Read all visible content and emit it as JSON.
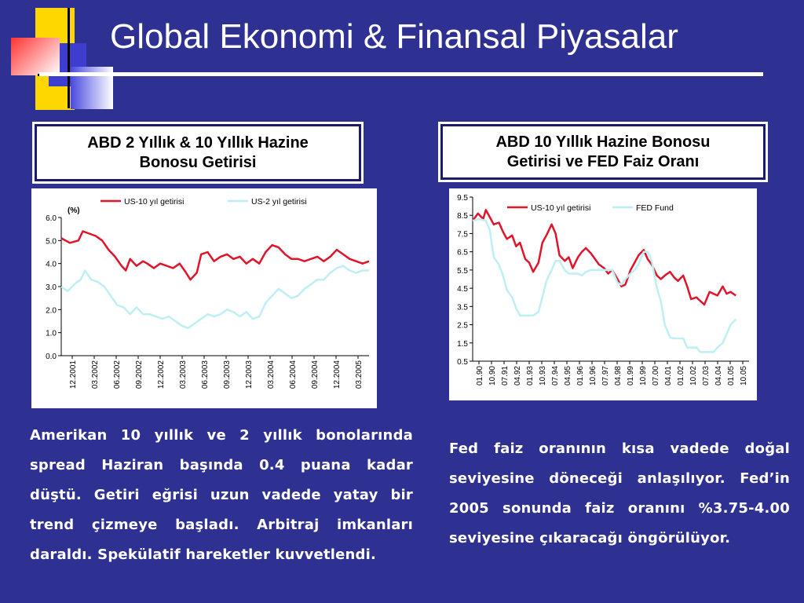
{
  "slide": {
    "title": "Global Ekonomi & Finansal Piyasalar",
    "colors": {
      "background": "#2E3192",
      "accent_yellow": "#FFD700",
      "accent_red": "#FF4040",
      "accent_blue": "#3D3DCF"
    }
  },
  "left_panel": {
    "box_line1": "ABD 2 Yıllık & 10 Yıllık Hazine",
    "box_line2": "Bonosu Getirisi",
    "paragraph": "Amerikan 10 yıllık ve 2 yıllık bonolarında spread Haziran başında 0.4 puana kadar düştü. Getiri eğrisi uzun vadede yatay bir trend çizmeye başladı. Arbitraj imkanları daraldı. Spekülatif hareketler kuvvetlendi."
  },
  "right_panel": {
    "box_line1": "ABD 10 Yıllık Hazine Bonosu",
    "box_line2": "Getirisi ve FED Faiz Oranı",
    "paragraph": "Fed faiz oranının kısa vadede doğal seviyesine döneceği anlaşılıyor. Fed’in 2005 sonunda faiz oranını %3.75-4.00 seviyesine çıkaracağı öngörülüyor."
  },
  "chart_data": [
    {
      "type": "line",
      "unit_label": "(%)",
      "ylim": [
        0,
        6
      ],
      "yticks": [
        "0.0",
        "1.0",
        "2.0",
        "3.0",
        "4.0",
        "5.0",
        "6.0"
      ],
      "xticks": [
        "12.2001",
        "03.2002",
        "06.2002",
        "09.2002",
        "12.2002",
        "03.2003",
        "06.2003",
        "09.2003",
        "12.2003",
        "03.2004",
        "06.2004",
        "09.2004",
        "12.2004",
        "03.2005"
      ],
      "x_index": [
        0,
        1,
        2,
        3,
        4,
        5,
        6,
        7,
        8,
        9,
        10,
        11,
        12,
        13,
        14,
        15,
        16,
        17,
        18,
        19,
        20,
        21,
        22,
        23,
        24,
        25,
        26,
        27,
        28,
        29,
        30,
        31,
        32,
        33,
        34,
        35,
        36,
        37,
        38,
        39,
        40,
        41,
        42,
        43,
        44,
        45,
        46,
        47,
        48,
        49,
        50,
        51,
        52,
        53,
        54,
        55,
        56,
        57,
        58,
        59,
        60,
        61,
        62,
        63,
        64,
        65,
        66,
        67,
        68,
        69,
        70,
        71,
        72,
        73,
        74,
        75,
        76,
        77,
        78,
        79,
        80,
        81,
        82,
        83,
        84,
        85,
        86,
        87,
        88,
        89,
        90,
        91,
        92,
        93,
        94,
        95,
        96,
        97,
        98,
        99,
        100,
        101,
        102,
        103,
        104,
        105,
        106,
        107,
        108,
        109,
        110,
        111,
        112,
        113,
        114,
        115,
        116,
        117,
        118,
        119,
        120,
        121,
        122,
        123,
        124,
        125,
        126,
        127,
        128,
        129,
        130,
        131,
        132,
        133,
        134,
        135,
        136,
        137,
        138,
        139,
        140,
        141,
        142
      ],
      "x_range": [
        0,
        14.3
      ],
      "series": [
        {
          "name": "US-10 yıl getirisi",
          "color": "#E0142A",
          "x": [
            0,
            0.4,
            0.8,
            1.0,
            1.3,
            1.6,
            1.9,
            2.2,
            2.5,
            2.8,
            3.0,
            3.2,
            3.5,
            3.8,
            4.0,
            4.3,
            4.6,
            4.9,
            5.2,
            5.5,
            5.8,
            6.0,
            6.3,
            6.5,
            6.8,
            7.1,
            7.4,
            7.7,
            8.0,
            8.3,
            8.6,
            8.9,
            9.2,
            9.5,
            9.8,
            10.1,
            10.4,
            10.7,
            11.0,
            11.3,
            11.6,
            11.9,
            12.2,
            12.5,
            12.8,
            13.1,
            13.4,
            13.7,
            14.0,
            14.3
          ],
          "y": [
            5.1,
            4.9,
            5.0,
            5.4,
            5.3,
            5.2,
            5.0,
            4.6,
            4.3,
            3.9,
            3.7,
            4.2,
            3.9,
            4.1,
            4.0,
            3.8,
            4.0,
            3.9,
            3.8,
            4.0,
            3.6,
            3.3,
            3.6,
            4.4,
            4.5,
            4.1,
            4.3,
            4.4,
            4.2,
            4.3,
            4.0,
            4.2,
            4.0,
            4.5,
            4.8,
            4.7,
            4.4,
            4.2,
            4.2,
            4.1,
            4.2,
            4.3,
            4.1,
            4.3,
            4.6,
            4.4,
            4.2,
            4.1,
            4.0,
            4.1
          ]
        },
        {
          "name": "US-2 yıl getirisi",
          "color": "#BDEFF3",
          "x": [
            0,
            0.3,
            0.6,
            0.9,
            1.1,
            1.4,
            1.7,
            2.0,
            2.3,
            2.6,
            2.9,
            3.2,
            3.5,
            3.8,
            4.1,
            4.4,
            4.7,
            5.0,
            5.3,
            5.6,
            5.9,
            6.2,
            6.5,
            6.8,
            7.1,
            7.4,
            7.7,
            8.0,
            8.3,
            8.6,
            8.9,
            9.2,
            9.5,
            9.8,
            10.1,
            10.4,
            10.7,
            11.0,
            11.3,
            11.6,
            11.9,
            12.2,
            12.5,
            12.8,
            13.1,
            13.4,
            13.7,
            14.0,
            14.3
          ],
          "y": [
            3.0,
            2.8,
            3.1,
            3.3,
            3.7,
            3.3,
            3.2,
            3.0,
            2.6,
            2.2,
            2.1,
            1.8,
            2.1,
            1.8,
            1.8,
            1.7,
            1.6,
            1.7,
            1.5,
            1.3,
            1.2,
            1.4,
            1.6,
            1.8,
            1.7,
            1.8,
            2.0,
            1.9,
            1.7,
            1.9,
            1.6,
            1.7,
            2.3,
            2.6,
            2.9,
            2.7,
            2.5,
            2.6,
            2.9,
            3.1,
            3.3,
            3.3,
            3.6,
            3.8,
            3.9,
            3.7,
            3.6,
            3.7,
            3.7
          ]
        }
      ]
    },
    {
      "type": "line",
      "ylim": [
        0.5,
        9.5
      ],
      "yticks": [
        "0.5",
        "1.5",
        "2.5",
        "3.5",
        "4.5",
        "5.5",
        "6.5",
        "7.5",
        "8.5",
        "9.5"
      ],
      "xticks": [
        "01.90",
        "10.90",
        "07.91",
        "04.92",
        "01.93",
        "10.93",
        "07.94",
        "04.95",
        "01.96",
        "10.96",
        "07.97",
        "04.98",
        "01.99",
        "10.99",
        "07.00",
        "04.01",
        "01.02",
        "10.02",
        "07.03",
        "04.04",
        "01.05",
        "10.05"
      ],
      "x_range": [
        0,
        21
      ],
      "series": [
        {
          "name": "US-10 yıl getirisi",
          "color": "#E0142A",
          "x": [
            0,
            0.4,
            0.8,
            1.0,
            1.3,
            1.6,
            2.0,
            2.3,
            2.6,
            3.0,
            3.3,
            3.6,
            4.0,
            4.3,
            4.6,
            5.0,
            5.3,
            5.6,
            6.0,
            6.3,
            6.6,
            7.0,
            7.3,
            7.6,
            8.0,
            8.3,
            8.6,
            9.0,
            9.3,
            9.6,
            10.0,
            10.3,
            10.6,
            11.0,
            11.3,
            11.6,
            12.0,
            12.3,
            12.6,
            13.0,
            13.3,
            13.6,
            14.0,
            14.3,
            14.6,
            15.0,
            15.3,
            15.6,
            16.0,
            16.3,
            16.6,
            17.0,
            17.3,
            17.6,
            18.0,
            18.3,
            18.6,
            19.0,
            19.3,
            19.6,
            20.0
          ],
          "y": [
            8.2,
            8.6,
            8.3,
            8.8,
            8.4,
            8.0,
            8.1,
            7.6,
            7.2,
            7.4,
            6.8,
            7.0,
            6.1,
            5.9,
            5.4,
            5.9,
            7.0,
            7.4,
            8.0,
            7.5,
            6.3,
            6.0,
            6.2,
            5.6,
            6.2,
            6.5,
            6.7,
            6.4,
            6.1,
            5.8,
            5.6,
            5.3,
            5.5,
            5.0,
            4.6,
            4.7,
            5.5,
            5.9,
            6.3,
            6.6,
            6.1,
            5.8,
            5.2,
            5.0,
            5.2,
            5.4,
            5.1,
            4.9,
            5.2,
            4.6,
            3.9,
            4.0,
            3.8,
            3.6,
            4.3,
            4.2,
            4.1,
            4.6,
            4.2,
            4.3,
            4.1
          ]
        },
        {
          "name": "FED Fund",
          "color": "#BDEFF3",
          "x": [
            0,
            0.5,
            1.0,
            1.3,
            1.6,
            2.0,
            2.3,
            2.6,
            3.0,
            3.3,
            3.6,
            4.0,
            4.3,
            4.6,
            5.0,
            5.3,
            5.6,
            6.0,
            6.3,
            6.6,
            7.0,
            7.3,
            7.6,
            8.0,
            8.3,
            8.6,
            9.0,
            9.3,
            9.6,
            10.0,
            10.3,
            10.6,
            11.0,
            11.3,
            11.6,
            12.0,
            12.3,
            12.6,
            13.0,
            13.3,
            13.6,
            14.0,
            14.3,
            14.6,
            15.0,
            15.3,
            15.6,
            16.0,
            16.3,
            16.6,
            17.0,
            17.3,
            17.6,
            18.0,
            18.3,
            18.6,
            19.0,
            19.3,
            19.6,
            20.0
          ],
          "y": [
            8.2,
            8.3,
            8.2,
            7.7,
            6.2,
            5.8,
            5.2,
            4.4,
            4.0,
            3.4,
            3.0,
            3.0,
            3.0,
            3.0,
            3.2,
            4.0,
            4.9,
            5.5,
            6.0,
            6.0,
            5.5,
            5.3,
            5.3,
            5.3,
            5.2,
            5.4,
            5.5,
            5.5,
            5.5,
            5.5,
            5.5,
            5.5,
            4.8,
            4.7,
            5.0,
            5.3,
            5.5,
            5.8,
            6.5,
            6.5,
            6.0,
            4.5,
            3.8,
            2.5,
            1.8,
            1.75,
            1.75,
            1.75,
            1.25,
            1.25,
            1.25,
            1.0,
            1.0,
            1.0,
            1.0,
            1.25,
            1.5,
            2.0,
            2.5,
            2.8
          ]
        }
      ]
    }
  ]
}
